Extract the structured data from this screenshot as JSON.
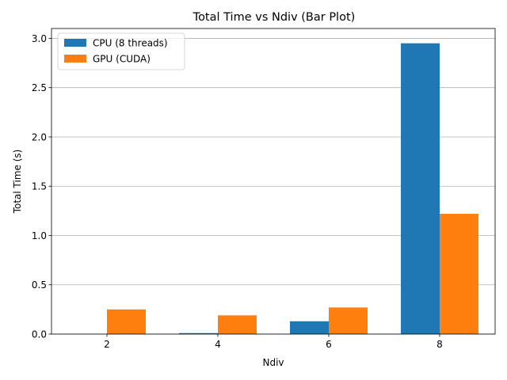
{
  "chart_data": {
    "type": "bar",
    "title": "Total Time vs Ndiv (Bar Plot)",
    "xlabel": "Ndiv",
    "ylabel": "Total Time (s)",
    "categories": [
      "2",
      "4",
      "6",
      "8"
    ],
    "series": [
      {
        "name": "CPU (8 threads)",
        "color": "#1f77b4",
        "values": [
          0.001,
          0.01,
          0.13,
          2.95
        ]
      },
      {
        "name": "GPU (CUDA)",
        "color": "#ff7f0e",
        "values": [
          0.25,
          0.19,
          0.27,
          1.22
        ]
      }
    ],
    "ylim": [
      0,
      3.1
    ],
    "yticks": [
      0.0,
      0.5,
      1.0,
      1.5,
      2.0,
      2.5,
      3.0
    ],
    "ytick_labels": [
      "0.0",
      "0.5",
      "1.0",
      "1.5",
      "2.0",
      "2.5",
      "3.0"
    ],
    "grid": "y",
    "legend_position": "top-left"
  }
}
